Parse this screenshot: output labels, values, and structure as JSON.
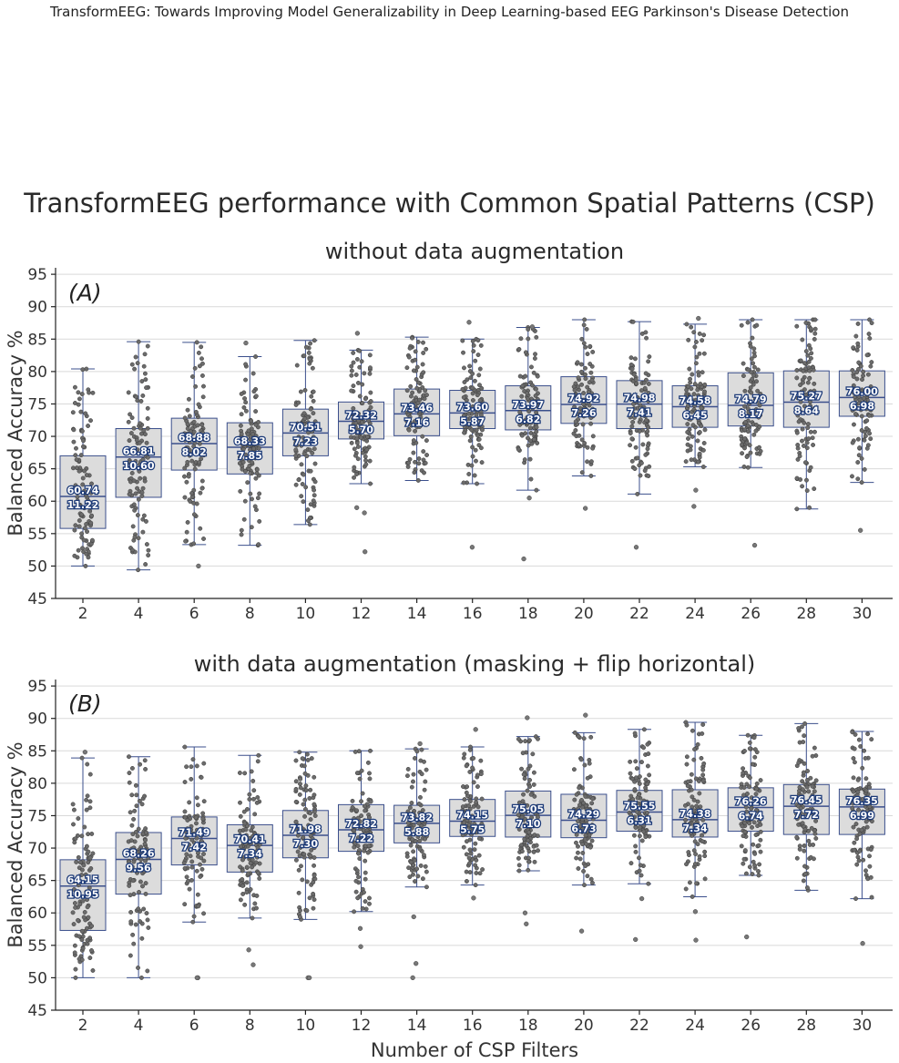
{
  "running_header": "TransformEEG: Towards Improving Model Generalizability in Deep Learning-based EEG Parkinson's Disease Detection",
  "title": "TransformEEG performance with Common Spatial Patterns (CSP)",
  "colors": {
    "box_fill": "#dcdcdc",
    "box_edge": "#3b4f8c",
    "points": "#6b6b6b",
    "label_outline": "#1c3a78"
  },
  "chart_data": [
    {
      "type": "box",
      "panel_label": "(A)",
      "title": "without data augmentation",
      "xlabel": "",
      "ylabel": "Balanced Accuracy %",
      "ylim": [
        45,
        96
      ],
      "yticks": [
        45,
        50,
        55,
        60,
        65,
        70,
        75,
        80,
        85,
        90,
        95
      ],
      "grid": true,
      "categories": [
        "2",
        "4",
        "6",
        "8",
        "10",
        "12",
        "14",
        "16",
        "18",
        "20",
        "22",
        "24",
        "26",
        "28",
        "30"
      ],
      "median": [
        60.74,
        66.81,
        68.88,
        68.33,
        70.51,
        72.32,
        73.46,
        73.6,
        73.97,
        74.92,
        74.98,
        74.58,
        74.79,
        75.27,
        76.0
      ],
      "median_labels": [
        "60.74",
        "66.81",
        "68.88",
        "68.33",
        "70.51",
        "72.32",
        "73.46",
        "73.60",
        "73.97",
        "74.92",
        "74.98",
        "74.58",
        "74.79",
        "75.27",
        "76.00"
      ],
      "iqr_labels": [
        "11.22",
        "10.60",
        "8.02",
        "7.85",
        "7.23",
        "5.70",
        "7.16",
        "5.87",
        "6.82",
        "7.26",
        "7.41",
        "6.45",
        "8.17",
        "8.64",
        "6.98"
      ],
      "q1": [
        55.8,
        60.6,
        64.8,
        64.2,
        67.0,
        69.6,
        70.1,
        71.2,
        71.0,
        72.0,
        71.2,
        71.4,
        71.6,
        71.4,
        73.1
      ],
      "q3": [
        67.0,
        71.2,
        72.8,
        72.1,
        74.2,
        75.3,
        77.3,
        77.1,
        77.8,
        79.2,
        78.6,
        77.8,
        79.8,
        80.1,
        80.1
      ],
      "whisker_low": [
        50.0,
        49.4,
        53.3,
        53.2,
        56.4,
        62.7,
        63.2,
        62.7,
        61.7,
        63.9,
        61.1,
        65.3,
        65.2,
        58.8,
        62.9
      ],
      "whisker_high": [
        80.4,
        84.6,
        84.5,
        82.3,
        84.8,
        83.3,
        85.3,
        85.0,
        86.8,
        88.0,
        87.7,
        87.3,
        88.0,
        88.0,
        88.0
      ],
      "outliers": [
        [],
        [],
        [
          50.0
        ],
        [
          84.4
        ],
        [],
        [
          52.2,
          58.2,
          59.0,
          85.9
        ],
        [],
        [
          52.9,
          87.6
        ],
        [
          51.1,
          60.5,
          86.9
        ],
        [
          58.9
        ],
        [
          52.9
        ],
        [
          59.2,
          61.7,
          88.2
        ],
        [
          53.2
        ],
        [],
        [
          55.5
        ]
      ],
      "n_points": 100
    },
    {
      "type": "box",
      "panel_label": "(B)",
      "title": "with data augmentation (masking + flip horizontal)",
      "xlabel": "Number of CSP Filters",
      "ylabel": "Balanced Accuracy %",
      "ylim": [
        45,
        96
      ],
      "yticks": [
        45,
        50,
        55,
        60,
        65,
        70,
        75,
        80,
        85,
        90,
        95
      ],
      "grid": true,
      "categories": [
        "2",
        "4",
        "6",
        "8",
        "10",
        "12",
        "14",
        "16",
        "18",
        "20",
        "22",
        "24",
        "26",
        "28",
        "30"
      ],
      "median": [
        64.15,
        68.26,
        71.49,
        70.41,
        71.98,
        72.82,
        73.82,
        74.15,
        75.05,
        74.29,
        75.55,
        74.38,
        76.26,
        76.45,
        76.35
      ],
      "median_labels": [
        "64.15",
        "68.26",
        "71.49",
        "70.41",
        "71.98",
        "72.82",
        "73.82",
        "74.15",
        "75.05",
        "74.29",
        "75.55",
        "74.38",
        "76.26",
        "76.45",
        "76.35"
      ],
      "iqr_labels": [
        "10.95",
        "9.56",
        "7.42",
        "7.34",
        "7.30",
        "7.22",
        "5.88",
        "5.75",
        "7.10",
        "6.73",
        "6.31",
        "7.34",
        "6.74",
        "7.72",
        "6.99"
      ],
      "q1": [
        57.3,
        62.9,
        67.4,
        66.3,
        68.5,
        69.5,
        70.8,
        71.8,
        71.7,
        71.6,
        72.6,
        71.7,
        72.6,
        72.1,
        72.1
      ],
      "q3": [
        68.2,
        72.4,
        74.8,
        73.6,
        75.8,
        76.7,
        76.6,
        77.5,
        78.8,
        78.3,
        78.9,
        79.0,
        79.3,
        79.8,
        79.1
      ],
      "whisker_low": [
        50.0,
        50.0,
        58.6,
        59.2,
        59.0,
        60.2,
        64.0,
        64.3,
        66.5,
        64.3,
        64.5,
        62.5,
        65.8,
        63.5,
        62.2
      ],
      "whisker_high": [
        83.9,
        84.1,
        85.6,
        84.3,
        84.8,
        85.0,
        85.3,
        85.6,
        87.2,
        87.8,
        88.3,
        89.4,
        87.4,
        89.2,
        88.0
      ],
      "outliers": [
        [
          84.8
        ],
        [],
        [
          50.0,
          50.0
        ],
        [
          52.0,
          54.3
        ],
        [
          50.0,
          50.0
        ],
        [
          54.8,
          57.6
        ],
        [
          50.0,
          52.2,
          59.4,
          86.1
        ],
        [
          62.3,
          88.3
        ],
        [
          58.3,
          60.0,
          90.1
        ],
        [
          57.2,
          90.5
        ],
        [
          55.9,
          62.2
        ],
        [
          55.8,
          60.2
        ],
        [
          56.3
        ],
        [],
        [
          55.3
        ]
      ],
      "n_points": 100
    }
  ]
}
